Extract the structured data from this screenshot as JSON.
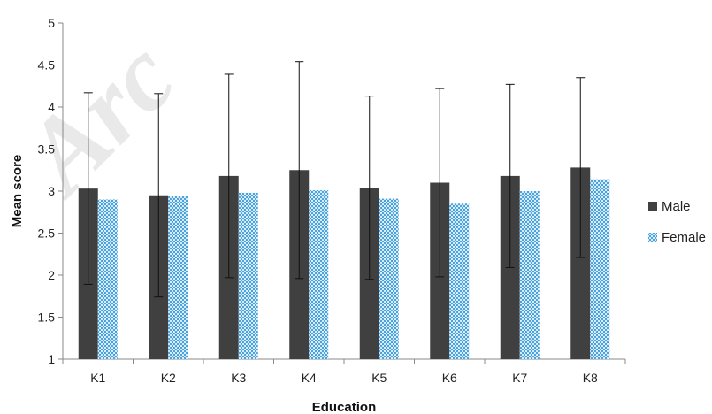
{
  "watermark": "Arc",
  "chart_data": {
    "type": "bar",
    "categories": [
      "K1",
      "K2",
      "K3",
      "K4",
      "K5",
      "K6",
      "K7",
      "K8"
    ],
    "series": [
      {
        "name": "Male",
        "values": [
          3.03,
          2.95,
          3.18,
          3.25,
          3.04,
          3.1,
          3.18,
          3.28
        ],
        "error": [
          1.14,
          1.21,
          1.21,
          1.29,
          1.09,
          1.12,
          1.09,
          1.07
        ],
        "color": "#404040",
        "pattern": "solid"
      },
      {
        "name": "Female",
        "values": [
          2.9,
          2.94,
          2.98,
          3.01,
          2.91,
          2.85,
          3.0,
          3.14
        ],
        "color": "#4aa3df",
        "pattern": "dotted"
      }
    ],
    "xlabel": "Education",
    "ylabel": "Mean score",
    "ylim": [
      1,
      5
    ],
    "yticks": [
      "1",
      "1.5",
      "2",
      "2.5",
      "3",
      "3.5",
      "4",
      "4.5",
      "5"
    ],
    "grid": false,
    "legend": "right"
  }
}
